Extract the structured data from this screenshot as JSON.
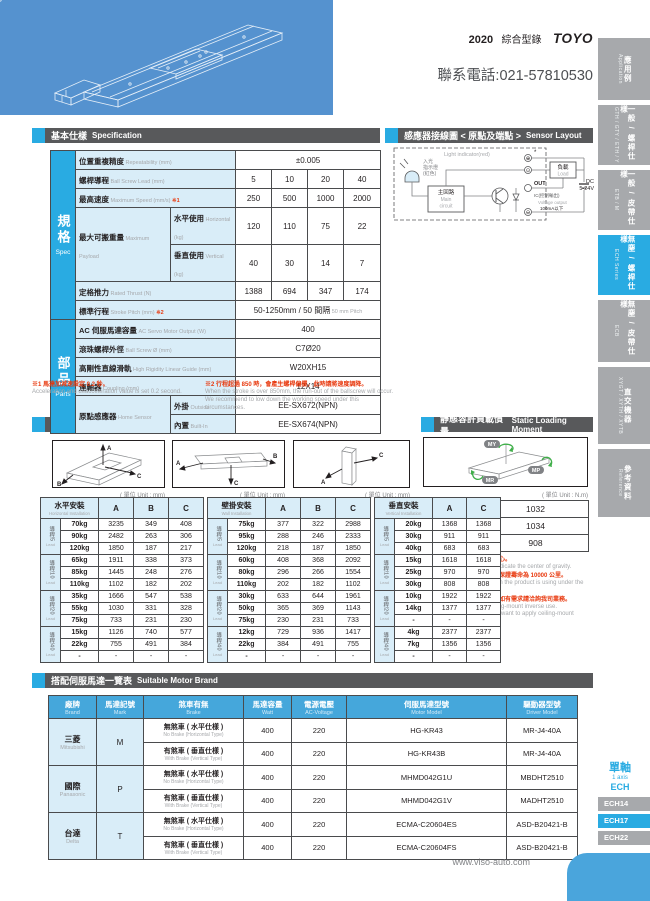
{
  "header": {
    "year": "2020",
    "catalog": "綜合型錄",
    "logo": "TOYO",
    "phone": "聯系電話:021-57810530",
    "website": "www.viso-auto.com"
  },
  "sidebar": {
    "tabs": [
      {
        "zh": "應用例",
        "en": "Application",
        "active": false
      },
      {
        "zh": "一般 / 螺桿仕樣",
        "en": "GTH / GTY / ETH / Y",
        "active": false
      },
      {
        "zh": "一般 / 皮帶仕樣",
        "en": "ETB / M",
        "active": false
      },
      {
        "zh": "無塵 / 螺桿仕樣",
        "en": "ECH Series",
        "active": true
      },
      {
        "zh": "無塵 / 皮帶仕樣",
        "en": "ECB",
        "active": false
      },
      {
        "zh": "直交機器",
        "en": "XYGT / XYTH / XYTB",
        "active": false
      },
      {
        "zh": "參考資料",
        "en": "Reference",
        "active": false
      }
    ]
  },
  "series_nav": {
    "group_zh": "單軸",
    "group_en": "1 axis",
    "group_series": "ECH",
    "items": [
      {
        "label": "ECH14",
        "active": false
      },
      {
        "label": "ECH17",
        "active": true
      },
      {
        "label": "ECH22",
        "active": false
      }
    ]
  },
  "spec": {
    "section_title_zh": "基本仕樣",
    "section_title_en": "Specification",
    "group_spec_zh": "規格",
    "group_spec_en": "Spec",
    "group_parts_zh": "部品",
    "group_parts_en": "Parts",
    "rows": [
      {
        "zh": "位置重複精度",
        "en": "Repeatability (mm)",
        "value": "±0.005"
      },
      {
        "zh": "螺桿導程",
        "en": "Ball Screw Lead (mm)",
        "values": [
          "5",
          "10",
          "20",
          "40"
        ]
      },
      {
        "zh": "最高速度",
        "en": "Maximum Speed (mm/s)",
        "note": "※1",
        "values": [
          "250",
          "500",
          "1000",
          "2000"
        ]
      },
      {
        "zh": "最大可搬重量",
        "en": "Maximum Payload",
        "subrows": [
          {
            "zh": "水平使用",
            "en": "Horizontal (kg)",
            "values": [
              "120",
              "110",
              "75",
              "22"
            ]
          },
          {
            "zh": "垂直使用",
            "en": "Vertical (kg)",
            "values": [
              "40",
              "30",
              "14",
              "7"
            ]
          }
        ]
      },
      {
        "zh": "定格推力",
        "en": "Rated Thrust (N)",
        "values": [
          "1388",
          "694",
          "347",
          "174"
        ]
      },
      {
        "zh": "標準行程",
        "en": "Stroke Pitch (mm)",
        "note": "※2",
        "value": "50-1250mm / 50 間隔",
        "value_sub": "50 mm Pitch"
      }
    ],
    "parts_rows": [
      {
        "zh": "AC 伺服馬達容量",
        "en": "AC Servo Motor Output (W)",
        "value": "400"
      },
      {
        "zh": "滾珠螺桿外徑",
        "en": "Ball Screw Ø (mm)",
        "value": "C7Ø20"
      },
      {
        "zh": "高剛性直線滑軌",
        "en": "High Rigidity Linear Guide (mm)",
        "value": "W20XH15"
      },
      {
        "zh": "連軸器",
        "en": "Coupling (mm)",
        "value": "12X14"
      },
      {
        "zh": "原點感應器",
        "en": "Home Sensor",
        "subrows": [
          {
            "zh": "外掛",
            "en": "Outside",
            "value": "EE-SX672(NPN)"
          },
          {
            "zh": "內置",
            "en": "Built-In",
            "value": "EE-SX674(NPN)"
          }
        ]
      }
    ],
    "footnotes": [
      {
        "zh": "※1 馬達加減速設定 0.2 秒。",
        "en": [
          "Acceleration and deacceleration value is set 0.2 second."
        ]
      },
      {
        "zh": "※2 行程超過 850 時，會產生螺桿偏擺，此時請將速度調降。",
        "en": [
          "When the stroke is over 850mm, the run-out of the ballscrew will occur.",
          "We recommend to low down the working speed under this circumstances."
        ]
      }
    ]
  },
  "sensor": {
    "section_title_zh": "感應器接線圖 < 原點及端點 >",
    "section_title_en": "Sensor Layout",
    "labels": {
      "light_zh1": "入光",
      "light_zh2": "指示燈",
      "light_zh3": "(紅色)",
      "light_en": "Light indicator(red)",
      "main_zh": "主回路",
      "main_en1": "Main",
      "main_en2": "circuit",
      "load_zh": "負載",
      "load_en": "Load",
      "out": "OUT",
      "star": "*",
      "ic": "IC(控制輸出)",
      "volt1": "Voltage output",
      "volt2": "100mA以下",
      "dc1": "DC",
      "dc2": "5-24V",
      "plus": "⊕",
      "mid": "⊙",
      "minus": "⊖"
    }
  },
  "overhang": {
    "section_title_zh": "容許負載力距表",
    "section_title_en": "Allowable Overhang",
    "unit": "( 單位 Unit : mm)",
    "lead_zh": "導程",
    "lead_en": "Lead",
    "tables": [
      {
        "name_zh": "水平安裝",
        "name_en": "Horizontal Installation",
        "cols": [
          "A",
          "B",
          "C"
        ],
        "groups": [
          {
            "lead": "5",
            "rows": [
              [
                "70kg",
                "3235",
                "349",
                "408"
              ],
              [
                "90kg",
                "2482",
                "263",
                "306"
              ],
              [
                "120kg",
                "1850",
                "187",
                "217"
              ]
            ]
          },
          {
            "lead": "10",
            "rows": [
              [
                "65kg",
                "1911",
                "338",
                "373"
              ],
              [
                "85kg",
                "1445",
                "248",
                "276"
              ],
              [
                "110kg",
                "1102",
                "182",
                "202"
              ]
            ]
          },
          {
            "lead": "20",
            "rows": [
              [
                "35kg",
                "1666",
                "547",
                "538"
              ],
              [
                "55kg",
                "1030",
                "331",
                "328"
              ],
              [
                "75kg",
                "733",
                "231",
                "230"
              ]
            ]
          },
          {
            "lead": "40",
            "rows": [
              [
                "15kg",
                "1126",
                "740",
                "577"
              ],
              [
                "22kg",
                "755",
                "491",
                "384"
              ],
              [
                "-",
                "-",
                "-",
                "-"
              ]
            ]
          }
        ]
      },
      {
        "name_zh": "壁掛安裝",
        "name_en": "Wall Installation",
        "cols": [
          "A",
          "B",
          "C"
        ],
        "groups": [
          {
            "lead": "5",
            "rows": [
              [
                "75kg",
                "377",
                "322",
                "2988"
              ],
              [
                "95kg",
                "288",
                "246",
                "2333"
              ],
              [
                "120kg",
                "218",
                "187",
                "1850"
              ]
            ]
          },
          {
            "lead": "10",
            "rows": [
              [
                "60kg",
                "408",
                "368",
                "2092"
              ],
              [
                "80kg",
                "296",
                "266",
                "1554"
              ],
              [
                "110kg",
                "202",
                "182",
                "1102"
              ]
            ]
          },
          {
            "lead": "20",
            "rows": [
              [
                "30kg",
                "633",
                "644",
                "1961"
              ],
              [
                "50kg",
                "365",
                "369",
                "1143"
              ],
              [
                "75kg",
                "230",
                "231",
                "733"
              ]
            ]
          },
          {
            "lead": "40",
            "rows": [
              [
                "12kg",
                "729",
                "936",
                "1417"
              ],
              [
                "22kg",
                "384",
                "491",
                "755"
              ],
              [
                "-",
                "-",
                "-",
                "-"
              ]
            ]
          }
        ]
      },
      {
        "name_zh": "垂直安裝",
        "name_en": "Vertical Installation",
        "cols": [
          "A",
          "C"
        ],
        "groups": [
          {
            "lead": "5",
            "rows": [
              [
                "20kg",
                "1368",
                "1368"
              ],
              [
                "30kg",
                "911",
                "911"
              ],
              [
                "40kg",
                "683",
                "683"
              ]
            ]
          },
          {
            "lead": "10",
            "rows": [
              [
                "15kg",
                "1618",
                "1618"
              ],
              [
                "25kg",
                "970",
                "970"
              ],
              [
                "30kg",
                "808",
                "808"
              ]
            ]
          },
          {
            "lead": "20",
            "rows": [
              [
                "10kg",
                "1922",
                "1922"
              ],
              [
                "14kg",
                "1377",
                "1377"
              ],
              [
                "-",
                "-",
                "-"
              ]
            ]
          },
          {
            "lead": "40",
            "rows": [
              [
                "4kg",
                "2377",
                "2377"
              ],
              [
                "7kg",
                "1356",
                "1356"
              ],
              [
                "-",
                "-",
                "-"
              ]
            ]
          }
        ]
      }
    ]
  },
  "moment": {
    "section_title_zh": "靜態容許負載慣量",
    "section_title_en": "Static Loading Moment",
    "unit": "( 單位 Unit : N.m)",
    "rows": [
      [
        "MY",
        "1032"
      ],
      [
        "MP",
        "1034"
      ],
      [
        "MR",
        "908"
      ]
    ],
    "notes": [
      {
        "zh": "* 力距表所表示的數據，代表重心。",
        "en": [
          "The torque value in the chart indicate the center of gravity."
        ]
      },
      {
        "zh": "* 符合型錄規範的正常使用下，保證壽命為 10000 公里。",
        "en": [
          "Operation life is 10,000km when the product is using under the",
          "specified conditions."
        ]
      },
      {
        "zh": "* 倒吊使用無法套用標準規範，如有需求請洽詢我司業務。",
        "en": [
          "Data information is not for ceiling-mount inverse use.",
          "Contact us for the details if you want to apply ceiling-mount",
          "inverse usage."
        ]
      }
    ]
  },
  "motor": {
    "section_title_zh": "搭配伺服馬達一覽表",
    "section_title_en": "Suitable Motor Brand",
    "headers": [
      {
        "zh": "廠牌",
        "en": "Brand"
      },
      {
        "zh": "馬達記號",
        "en": "Mark"
      },
      {
        "zh": "煞車有無",
        "en": "Brake"
      },
      {
        "zh": "馬達容量",
        "en": "Watt"
      },
      {
        "zh": "電源電壓",
        "en": "AC-Voltage"
      },
      {
        "zh": "伺服馬達型號",
        "en": "Motor Model"
      },
      {
        "zh": "驅動器型號",
        "en": "Driver Model"
      }
    ],
    "brands": [
      {
        "zh": "三菱",
        "en": "Mitsubishi",
        "mark": "M",
        "rows": [
          {
            "brake_zh": "無煞車 ( 水平仕樣 )",
            "brake_en": "No Brake (Horizontal Type)",
            "watt": "400",
            "voltage": "220",
            "motor": "HG-KR43",
            "driver": "MR-J4-40A"
          },
          {
            "brake_zh": "有煞車 ( 垂直仕樣 )",
            "brake_en": "With Brake (Vertical Type)",
            "watt": "400",
            "voltage": "220",
            "motor": "HG-KR43B",
            "driver": "MR-J4-40A"
          }
        ]
      },
      {
        "zh": "國際",
        "en": "Panasonic",
        "mark": "P",
        "rows": [
          {
            "brake_zh": "無煞車 ( 水平仕樣 )",
            "brake_en": "No Brake (Horizontal Type)",
            "watt": "400",
            "voltage": "220",
            "motor": "MHMD042G1U",
            "driver": "MBDHT2510"
          },
          {
            "brake_zh": "有煞車 ( 垂直仕樣 )",
            "brake_en": "With Brake (Vertical Type)",
            "watt": "400",
            "voltage": "220",
            "motor": "MHMD042G1V",
            "driver": "MADHT2510"
          }
        ]
      },
      {
        "zh": "台達",
        "en": "Delta",
        "mark": "T",
        "rows": [
          {
            "brake_zh": "無煞車 ( 水平仕樣 )",
            "brake_en": "No Brake (Horizontal Type)",
            "watt": "400",
            "voltage": "220",
            "motor": "ECMA-C20604ES",
            "driver": "ASD-B20421-B"
          },
          {
            "brake_zh": "有煞車 ( 垂直仕樣 )",
            "brake_en": "With Brake (Vertical Type)",
            "watt": "400",
            "voltage": "220",
            "motor": "ECMA-C20604FS",
            "driver": "ASD-B20421-B"
          }
        ]
      }
    ]
  },
  "colors": {
    "accent_blue": "#29abe2",
    "light_blue": "#d9edf8",
    "dark_bar": "#58595b",
    "sidebar_gray": "#a7a9ac",
    "note_red": "#e8380d",
    "hero_blue": "#5592cf"
  }
}
